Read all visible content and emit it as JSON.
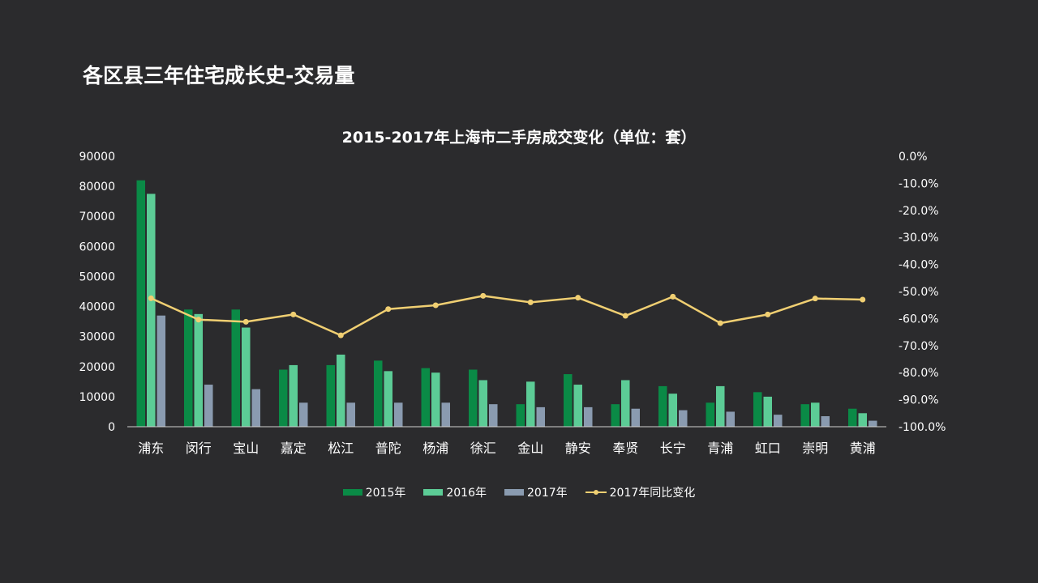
{
  "slide": {
    "title": "各区县三年住宅成长史-交易量"
  },
  "chart_data": {
    "type": "bar",
    "title": "2015-2017年上海市二手房成交变化（单位：套）",
    "categories": [
      "浦东",
      "闵行",
      "宝山",
      "嘉定",
      "松江",
      "普陀",
      "杨浦",
      "徐汇",
      "金山",
      "静安",
      "奉贤",
      "长宁",
      "青浦",
      "虹口",
      "崇明",
      "黄浦"
    ],
    "series": [
      {
        "name": "2015年",
        "kind": "bar",
        "axis": "left",
        "color": "#0a8a46",
        "values": [
          82000,
          39000,
          39000,
          19000,
          20500,
          22000,
          19500,
          19000,
          7500,
          17500,
          7500,
          13500,
          8000,
          11500,
          7500,
          6000
        ]
      },
      {
        "name": "2016年",
        "kind": "bar",
        "axis": "left",
        "color": "#5ccc96",
        "values": [
          77500,
          37500,
          33000,
          20500,
          24000,
          18500,
          18000,
          15500,
          15000,
          14000,
          15500,
          11000,
          13500,
          10000,
          8000,
          4500
        ]
      },
      {
        "name": "2017年",
        "kind": "bar",
        "axis": "left",
        "color": "#8a9bb0",
        "values": [
          37000,
          14000,
          12500,
          8000,
          8000,
          8000,
          8000,
          7500,
          6500,
          6500,
          6000,
          5500,
          5000,
          4000,
          3500,
          2000
        ]
      },
      {
        "name": "2017年同比变化",
        "kind": "line",
        "axis": "right",
        "color": "#f0cf72",
        "values": [
          -52.5,
          -60.4,
          -61.2,
          -58.5,
          -66.2,
          -56.5,
          -55.1,
          -51.6,
          -54.0,
          -52.3,
          -59.0,
          -51.9,
          -61.7,
          -58.5,
          -52.6,
          -53.0
        ]
      }
    ],
    "yaxis_left": {
      "min": 0,
      "max": 90000,
      "ticks": [
        "0",
        "10000",
        "20000",
        "30000",
        "40000",
        "50000",
        "60000",
        "70000",
        "80000",
        "90000"
      ]
    },
    "yaxis_right": {
      "min": -100,
      "max": 0,
      "ticks": [
        "-100.0%",
        "-90.0%",
        "-80.0%",
        "-70.0%",
        "-60.0%",
        "-50.0%",
        "-40.0%",
        "-30.0%",
        "-20.0%",
        "-10.0%",
        "0.0%"
      ]
    },
    "grid": false,
    "legend_position": "bottom"
  }
}
